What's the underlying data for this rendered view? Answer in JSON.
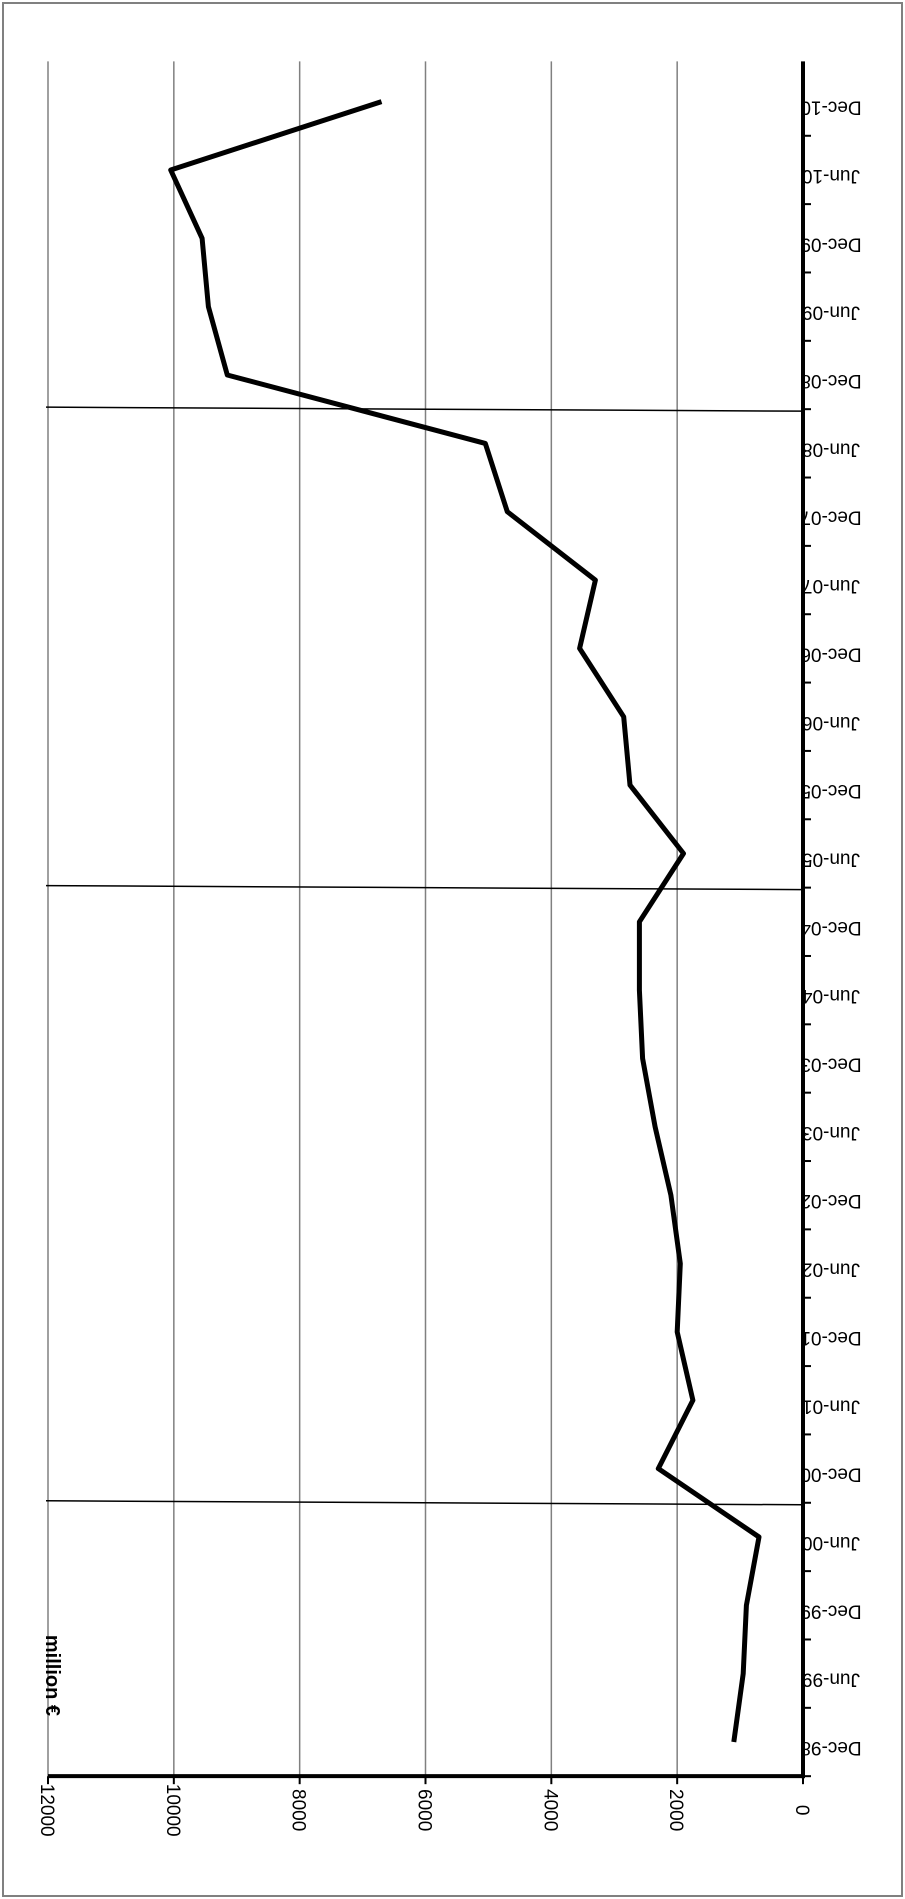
{
  "chart_data": {
    "type": "line",
    "title": "",
    "xlabel": "",
    "ylabel": "million €",
    "ylim": [
      0,
      12000
    ],
    "yticks": [
      0,
      2000,
      4000,
      6000,
      8000,
      10000,
      12000
    ],
    "grid": true,
    "orientation": "rotated 90° clockwise",
    "categories": [
      "Dec-98",
      "Jun-99",
      "Dec-99",
      "Jun-00",
      "Dec-00",
      "Jun-01",
      "Dec-01",
      "Jun-02",
      "Dec-02",
      "Jun-03",
      "Dec-03",
      "Jun-04",
      "Dec-04",
      "Jun-05",
      "Dec-05",
      "Jun-06",
      "Dec-06",
      "Jun-07",
      "Dec-07",
      "Jun-08",
      "Dec-08",
      "Jun-09",
      "Dec-09",
      "Jun-10",
      "Dec-10"
    ],
    "series": [
      {
        "values": [
          1100,
          950,
          900,
          700,
          2300,
          1750,
          2000,
          1950,
          2100,
          2350,
          2550,
          2600,
          2600,
          1900,
          2750,
          2850,
          3550,
          3300,
          4700,
          5050,
          9150,
          9450,
          9550,
          10050,
          6700
        ]
      }
    ],
    "vertical_markers_between": [
      [
        "Jun-00",
        "Dec-00"
      ],
      [
        "Dec-04",
        "Jun-05"
      ],
      [
        "Jun-08",
        "Dec-08"
      ]
    ],
    "colors": {
      "line": "#000000",
      "grid": "#808080",
      "axis": "#000000"
    }
  }
}
